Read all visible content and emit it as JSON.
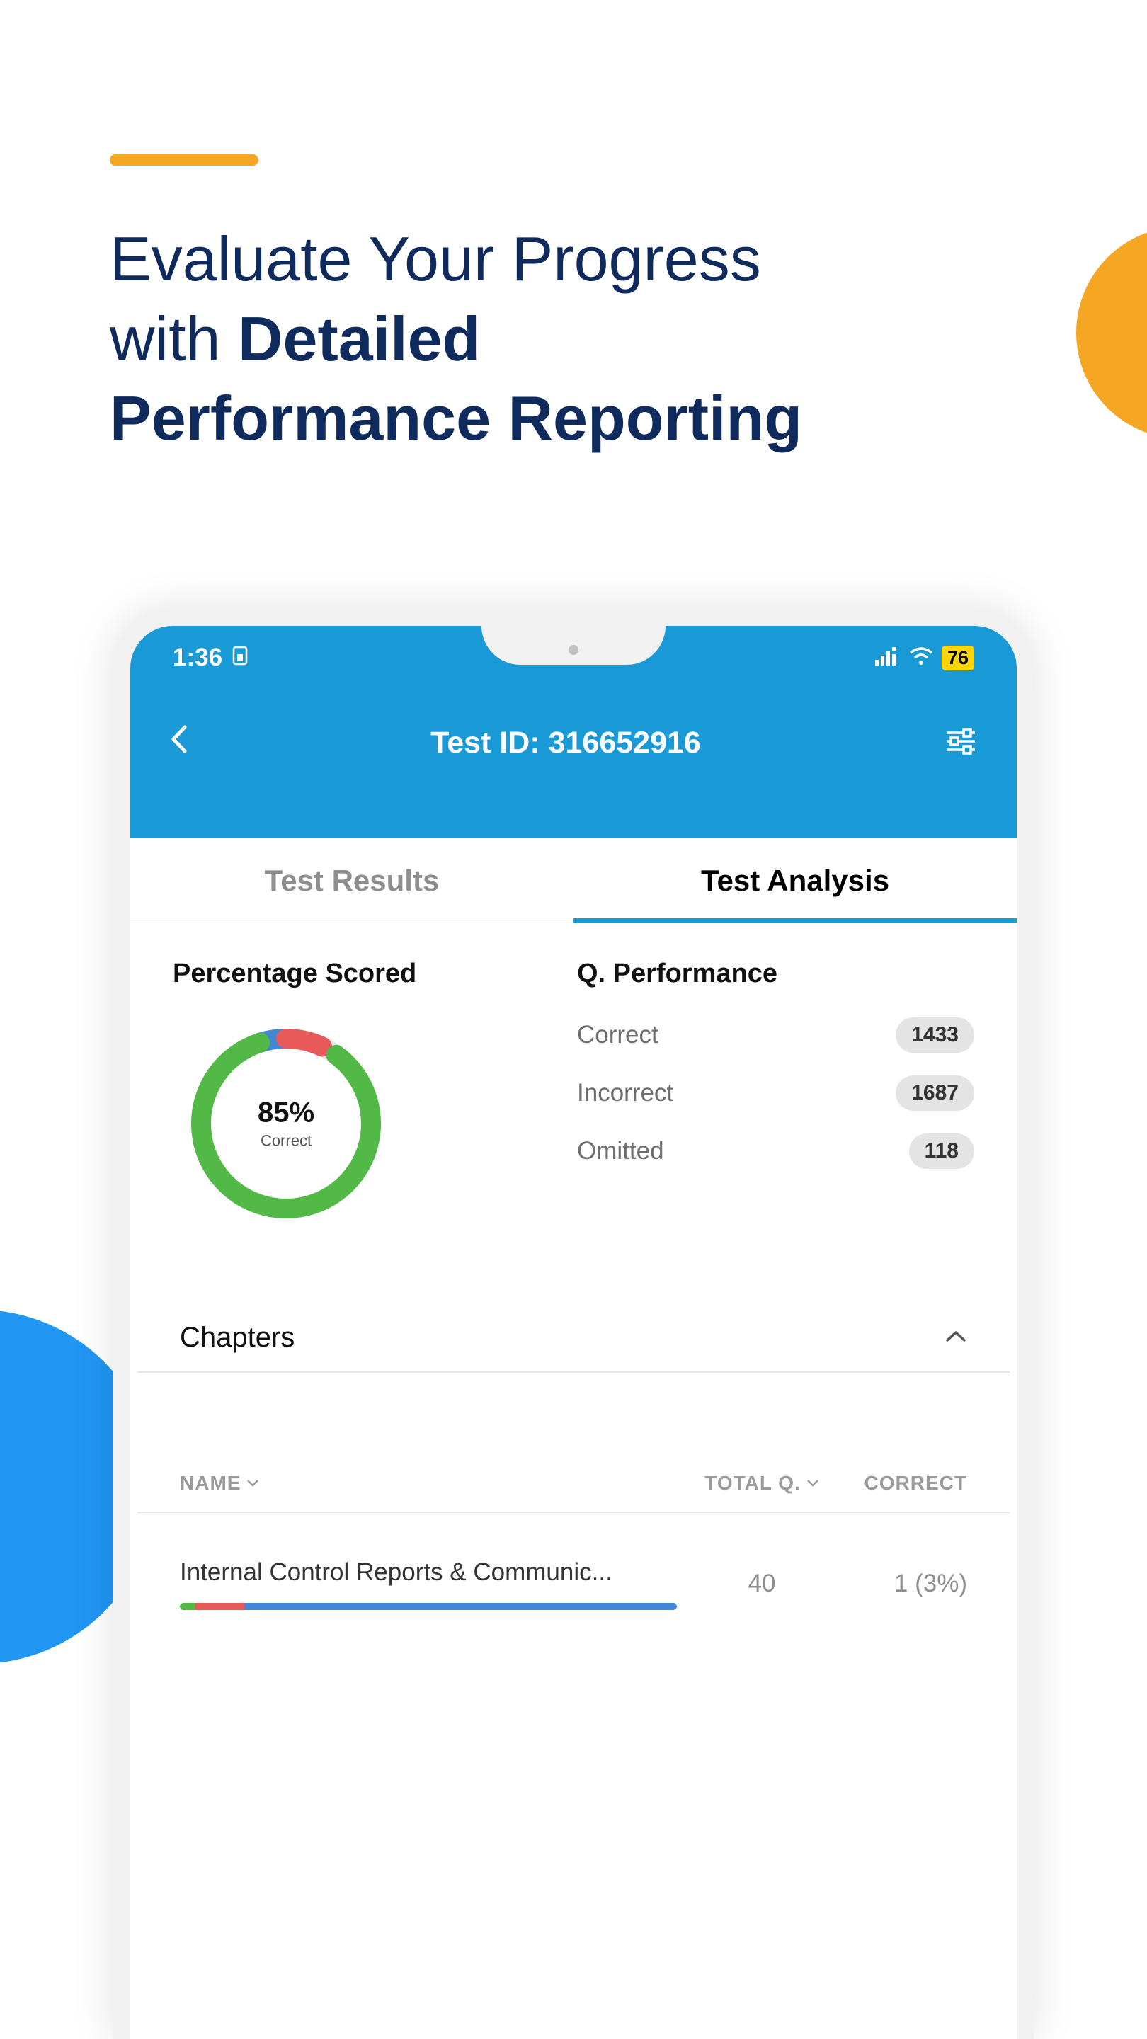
{
  "page": {
    "accent_color": "#f5a623",
    "headline_regular_1": "Evaluate Your Progress",
    "headline_regular_2": "with ",
    "headline_bold_1": "Detailed",
    "headline_bold_2": "Performance Reporting",
    "headline_color": "#0f2a5d"
  },
  "phone": {
    "status": {
      "time": "1:36",
      "battery": "76",
      "header_bg": "#1999d6"
    },
    "header": {
      "title": "Test ID: 316652916"
    },
    "tabs": {
      "results": "Test Results",
      "analysis": "Test Analysis",
      "active_underline": "#1999d6"
    },
    "percentage_scored": {
      "title": "Percentage Scored",
      "value": "85%",
      "sublabel": "Correct",
      "donut": {
        "correct_color": "#52b947",
        "incorrect_color": "#e85a5a",
        "omitted_color": "#4187d6",
        "track_color": "#e8e8e8",
        "correct_pct": 85,
        "incorrect_pct": 7,
        "omitted_pct": 5,
        "gap_pct": 3,
        "stroke_width": 28
      }
    },
    "q_performance": {
      "title": "Q. Performance",
      "rows": [
        {
          "label": "Correct",
          "value": "1433"
        },
        {
          "label": "Incorrect",
          "value": "1687"
        },
        {
          "label": "Omitted",
          "value": "118"
        }
      ]
    },
    "chapters": {
      "title": "Chapters",
      "columns": {
        "name": "NAME",
        "total": "TOTAL Q.",
        "correct": "CORRECT"
      },
      "rows": [
        {
          "name": "Internal Control Reports & Communic...",
          "total": "40",
          "correct": "1 (3%)",
          "progress": {
            "segments": [
              {
                "color": "#52b947",
                "pct": 3
              },
              {
                "color": "#e85a5a",
                "pct": 10
              },
              {
                "color": "#4187d6",
                "pct": 87
              }
            ]
          }
        }
      ]
    }
  }
}
